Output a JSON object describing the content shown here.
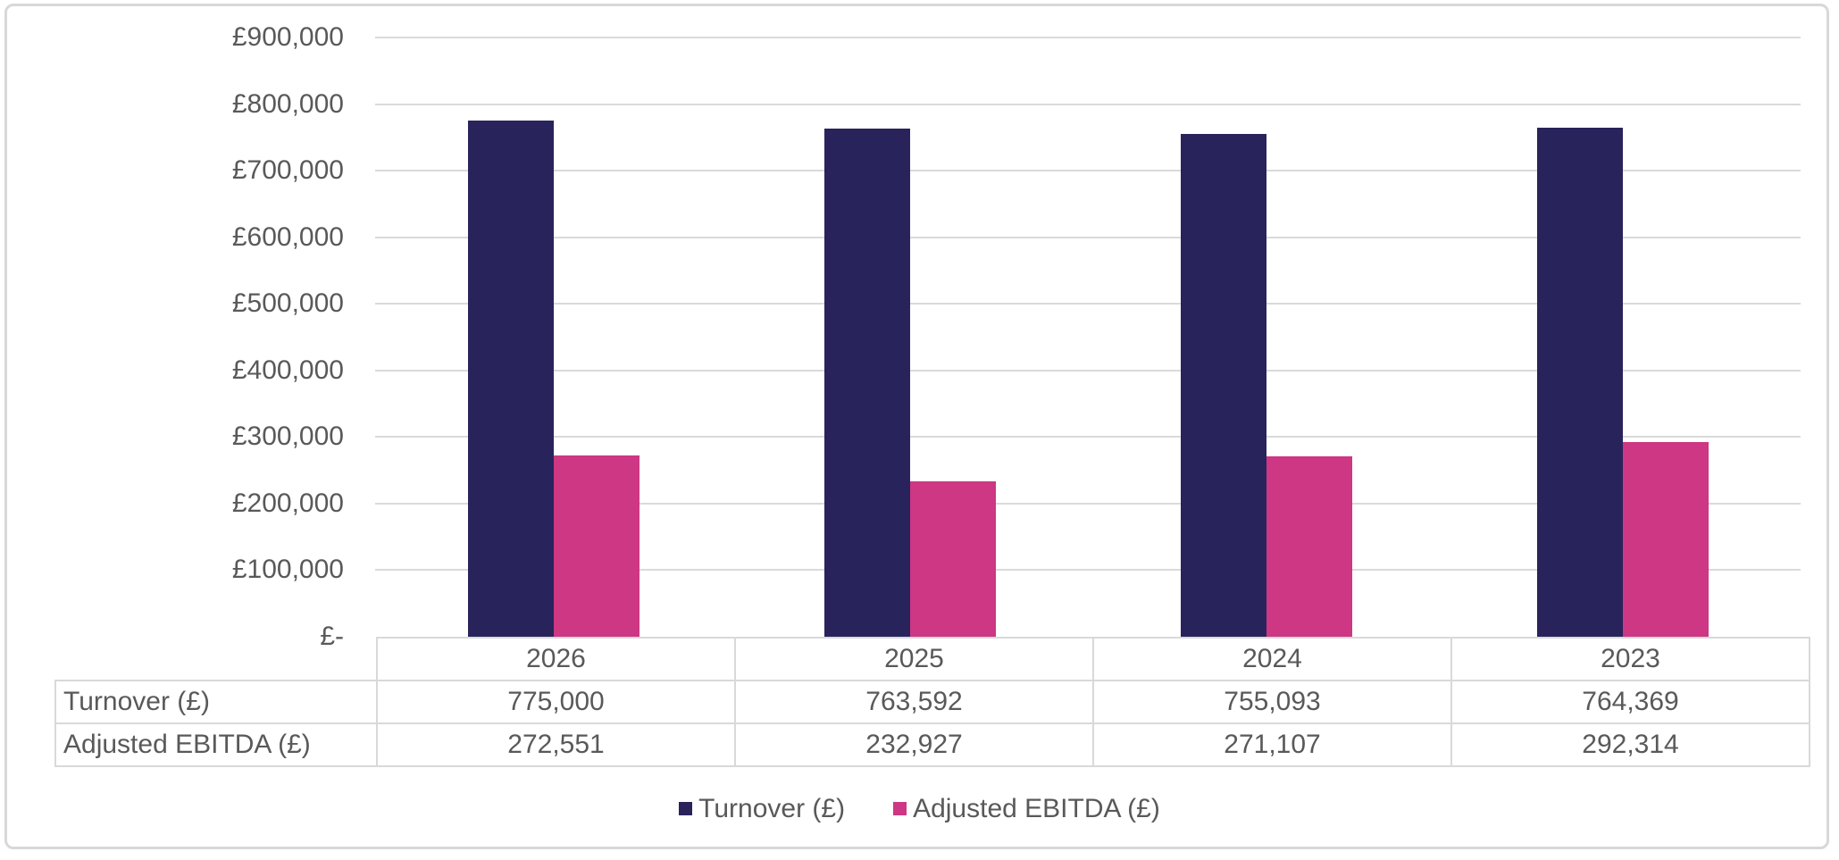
{
  "chart_data": {
    "type": "bar",
    "title": "",
    "xlabel": "",
    "ylabel": "",
    "categories": [
      "2026",
      "2025",
      "2024",
      "2023"
    ],
    "series": [
      {
        "name": "Turnover (£)",
        "color": "#29235C",
        "values": [
          775000,
          763592,
          755093,
          764369
        ]
      },
      {
        "name": "Adjusted EBITDA (£)",
        "color": "#CD3784",
        "values": [
          272551,
          232927,
          271107,
          292314
        ]
      }
    ],
    "ylim": [
      0,
      900000
    ],
    "y_tick_step": 100000,
    "y_tick_labels": [
      "£900,000",
      "£800,000",
      "£700,000",
      "£600,000",
      "£500,000",
      "£400,000",
      "£300,000",
      "£200,000",
      "£100,000",
      "£-"
    ],
    "grid": true,
    "legend_position": "bottom"
  },
  "data_table": {
    "header_labels": [
      "2026",
      "2025",
      "2024",
      "2023"
    ],
    "rows": [
      {
        "label": "Turnover (£)",
        "values": [
          "775,000",
          "763,592",
          "755,093",
          "764,369"
        ]
      },
      {
        "label": "Adjusted EBITDA (£)",
        "values": [
          "272,551",
          "232,927",
          "271,107",
          "292,314"
        ]
      }
    ]
  },
  "legend": {
    "items": [
      {
        "label": "Turnover (£)",
        "color": "#29235C"
      },
      {
        "label": "Adjusted EBITDA (£)",
        "color": "#CD3784"
      }
    ]
  },
  "colors": {
    "turnover_bar": "#29235C",
    "ebitda_bar": "#CD3784",
    "gridline": "#DADADA",
    "frame_border": "#D8D8D8",
    "table_border": "#D9D9D9",
    "text": "#595959"
  }
}
